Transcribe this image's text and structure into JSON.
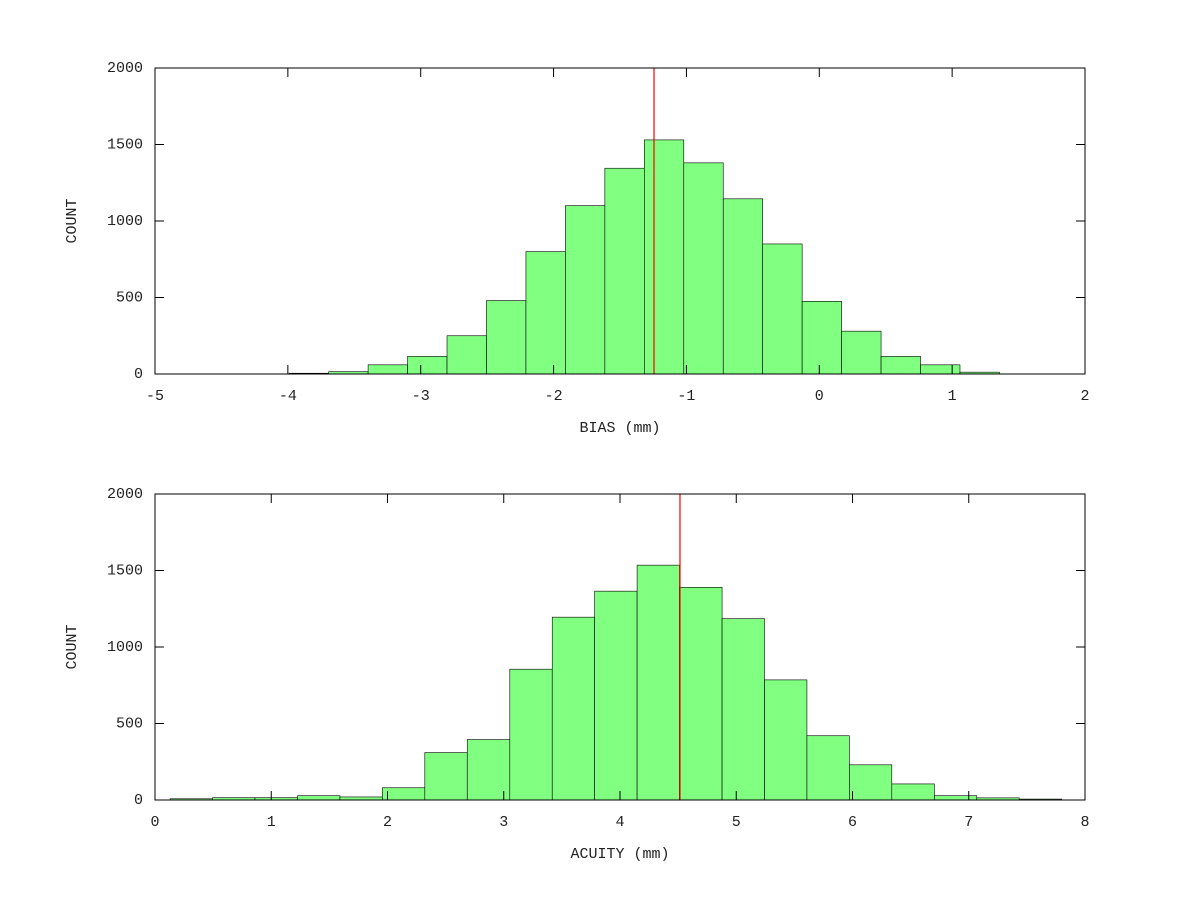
{
  "chart_data": [
    {
      "type": "histogram",
      "xlabel": "BIAS (mm)",
      "ylabel": "COUNT",
      "color": "#80ff80",
      "line_color": "#ff0000",
      "bins": [
        -3.99,
        -3.693,
        -3.396,
        -3.099,
        -2.802,
        -2.505,
        -2.208,
        -1.911,
        -1.614,
        -1.317,
        -1.02,
        -0.723,
        -0.426,
        -0.129,
        0.168,
        0.465,
        0.762,
        1.059,
        1.356
      ],
      "values": [
        5,
        15,
        60,
        115,
        250,
        480,
        800,
        1100,
        1345,
        1530,
        1380,
        1145,
        850,
        475,
        280,
        115,
        60,
        12
      ],
      "vline": -1.244,
      "xlim": [
        -5,
        2
      ],
      "xticks": [
        -5,
        -4,
        -3,
        -2,
        -1,
        0,
        1,
        2
      ],
      "ylim": [
        0,
        2000
      ],
      "yticks": [
        0,
        500,
        1000,
        1500,
        2000
      ]
    },
    {
      "type": "histogram",
      "xlabel": "ACUITY (mm)",
      "ylabel": "COUNT",
      "color": "#80ff80",
      "line_color": "#ff0000",
      "bins": [
        0.13,
        0.495,
        0.86,
        1.226,
        1.591,
        1.956,
        2.321,
        2.686,
        3.052,
        3.417,
        3.782,
        4.147,
        4.512,
        4.878,
        5.243,
        5.608,
        5.973,
        6.338,
        6.704,
        7.069,
        7.434,
        7.8
      ],
      "values": [
        8,
        15,
        15,
        28,
        20,
        80,
        310,
        395,
        855,
        1195,
        1365,
        1535,
        1390,
        1185,
        785,
        420,
        230,
        105,
        28,
        14,
        6
      ],
      "vline": 4.516,
      "xlim": [
        0,
        8
      ],
      "xticks": [
        0,
        1,
        2,
        3,
        4,
        5,
        6,
        7,
        8
      ],
      "ylim": [
        0,
        2000
      ],
      "yticks": [
        0,
        500,
        1000,
        1500,
        2000
      ]
    }
  ]
}
